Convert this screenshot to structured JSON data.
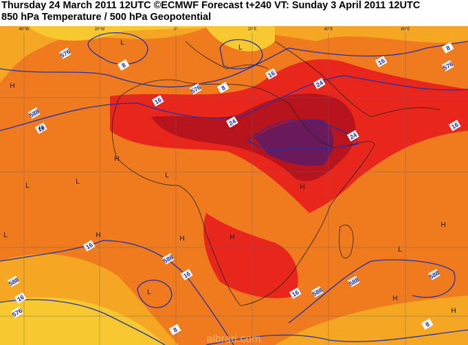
{
  "header": {
    "line1": "Thursday 24 March 2011 12UTC ©ECMWF Forecast t+240 VT: Sunday 3 April 2011 12UTC",
    "line2": "850 hPa Temperature / 500 hPa Geopotential"
  },
  "longitude_labels": [
    "40°W",
    "20°W",
    "0°",
    "20°E",
    "40°E",
    "60°E"
  ],
  "contour_labels": [
    "576",
    "8",
    "576",
    "8",
    "16",
    "16",
    "588",
    "24",
    "16",
    "24",
    "16",
    "8",
    "576",
    "16",
    "24",
    "16",
    "588",
    "16",
    "16",
    "588",
    "576",
    "8",
    "16",
    "588",
    "588",
    "588",
    "8"
  ],
  "pressure_centers": [
    "L",
    "L",
    "H",
    "H",
    "L",
    "L",
    "H",
    "L",
    "H",
    "H",
    "L",
    "H",
    "L",
    "L",
    "H",
    "H",
    "H",
    "H"
  ],
  "watermark": "albrari.com"
}
